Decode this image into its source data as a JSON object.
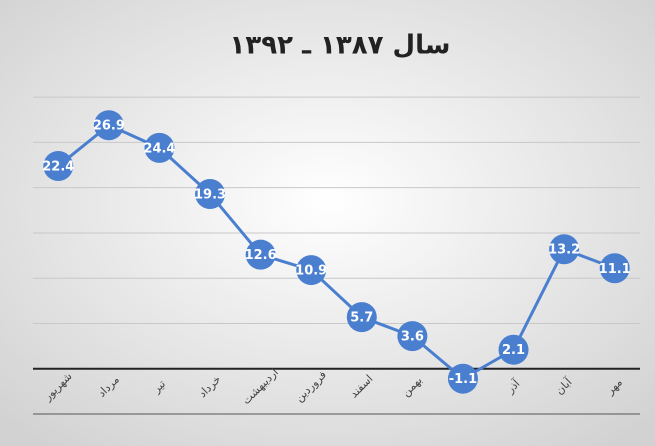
{
  "chart_data": {
    "type": "line",
    "title": "سال ۱۳۸۷ ـ ۱۳۹۲",
    "categories": [
      "شهریور",
      "مرداد",
      "تیر",
      "خرداد",
      "اردیبهشت",
      "فروردین",
      "اسفند",
      "بهمن",
      "دی",
      "آذر",
      "آبان",
      "مهر"
    ],
    "values": [
      22.4,
      26.9,
      24.4,
      19.3,
      12.6,
      10.9,
      5.7,
      3.6,
      -1.1,
      2.1,
      13.2,
      11.1
    ],
    "color": "#4a7fd0",
    "ylim": [
      -5,
      33
    ],
    "yticks": [
      -5,
      0,
      5,
      10,
      15,
      20,
      25,
      30
    ],
    "grid": true
  }
}
